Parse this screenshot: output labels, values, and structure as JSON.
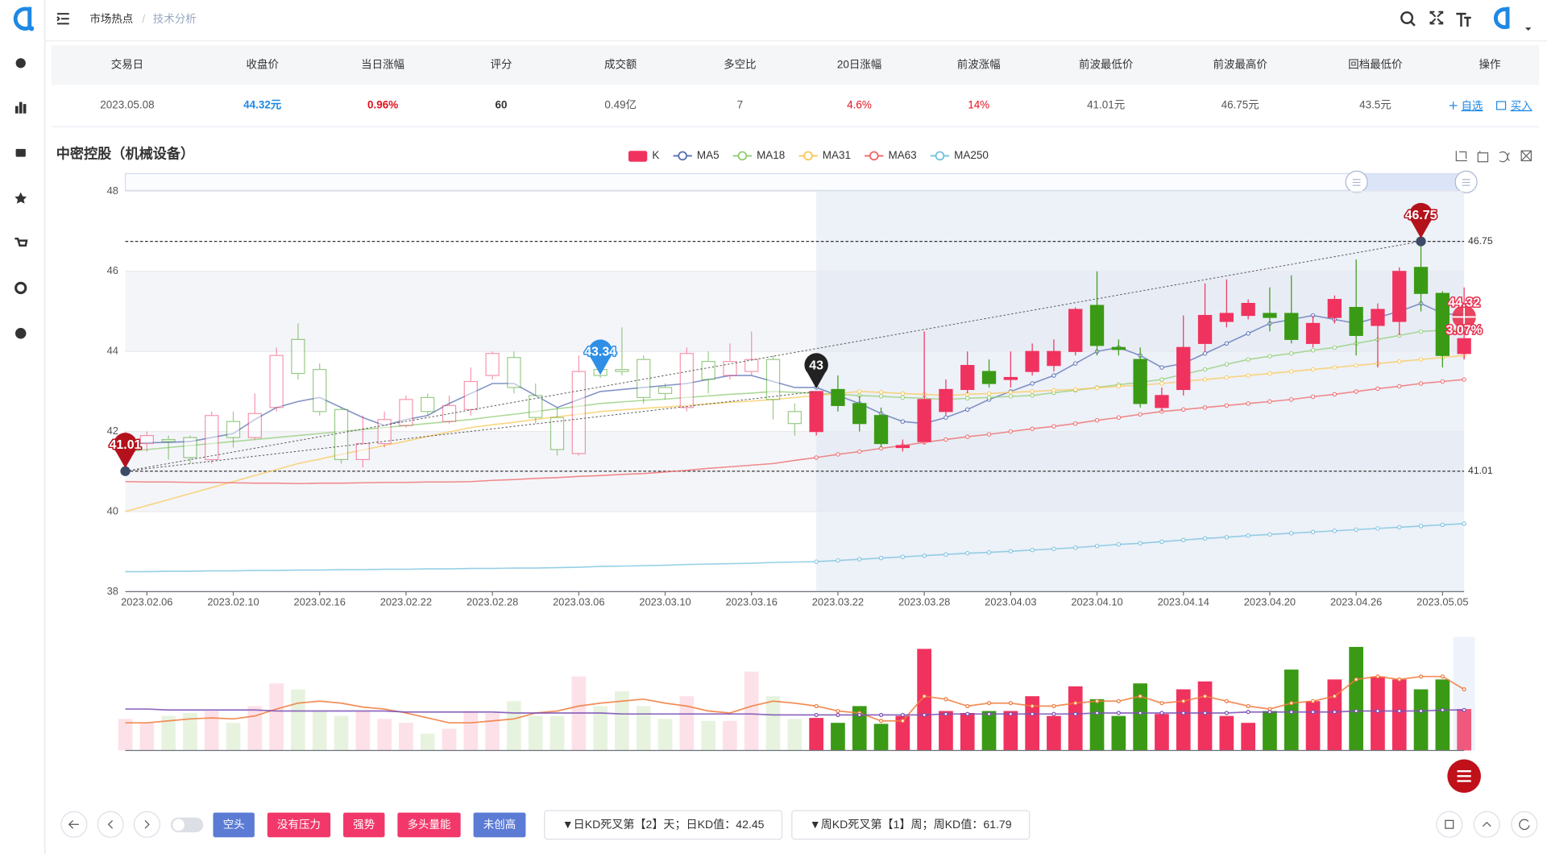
{
  "header": {
    "breadcrumb": [
      "市场热点",
      "技术分析"
    ],
    "breadcrumb_separator": "/"
  },
  "table": {
    "columns": [
      "交易日",
      "收盘价",
      "当日涨幅",
      "评分",
      "成交额",
      "多空比",
      "20日涨幅",
      "前波涨幅",
      "前波最低价",
      "前波最高价",
      "回档最低价",
      "操作"
    ],
    "rows": [
      [
        "2023.05.08",
        "44.32元",
        "0.96%",
        "60",
        "0.49亿",
        "7",
        "4.6%",
        "14%",
        "41.01元",
        "46.75元",
        "43.5元",
        [
          "自选",
          "买入"
        ]
      ]
    ]
  },
  "chart_data": {
    "type": "candlestick",
    "title": "中密控股（机械设备）",
    "candle_name": "K",
    "up_color": "#f0325f",
    "down_color": "#3a9a15",
    "categories": [
      null,
      "2023.02.06",
      null,
      null,
      null,
      "2023.02.10",
      null,
      null,
      null,
      "2023.02.16",
      null,
      null,
      null,
      "2023.02.22",
      null,
      null,
      null,
      "2023.02.28",
      null,
      null,
      null,
      "2023.03.06",
      null,
      null,
      null,
      "2023.03.10",
      null,
      null,
      null,
      "2023.03.16",
      null,
      null,
      null,
      "2023.03.22",
      null,
      null,
      null,
      "2023.03.28",
      null,
      null,
      null,
      "2023.04.03",
      null,
      null,
      null,
      "2023.04.10",
      null,
      null,
      null,
      "2023.04.14",
      null,
      null,
      null,
      "2023.04.20",
      null,
      null,
      null,
      "2023.04.26",
      null,
      null,
      null,
      "2023.05.05",
      null
    ],
    "open": [
      41.6,
      41.7,
      41.8,
      41.85,
      41.3,
      42.25,
      41.85,
      42.6,
      44.3,
      43.55,
      42.55,
      41.3,
      41.7,
      42.15,
      42.85,
      42.25,
      42.55,
      43.4,
      43.85,
      42.9,
      42.35,
      41.45,
      43.55,
      43.55,
      43.8,
      43.1,
      42.6,
      43.75,
      43.4,
      43.5,
      43.8,
      42.5,
      42.0,
      43.05,
      42.7,
      42.4,
      41.6,
      41.75,
      42.5,
      43.05,
      43.5,
      43.3,
      43.5,
      43.65,
      44.0,
      45.15,
      44.1,
      43.8,
      42.6,
      43.05,
      44.2,
      44.75,
      44.9,
      44.95,
      44.95,
      44.2,
      44.85,
      45.1,
      44.65,
      44.75,
      46.1,
      45.45,
      43.95
    ],
    "close": [
      41.8,
      41.9,
      41.75,
      41.35,
      42.4,
      41.85,
      42.45,
      43.9,
      43.45,
      42.5,
      41.3,
      41.7,
      42.3,
      42.8,
      42.5,
      42.65,
      43.25,
      43.95,
      43.1,
      42.35,
      41.55,
      43.5,
      43.4,
      43.5,
      42.85,
      42.95,
      43.95,
      43.3,
      43.75,
      43.8,
      42.8,
      42.2,
      43.0,
      42.65,
      42.2,
      41.7,
      41.65,
      42.8,
      43.05,
      43.65,
      43.2,
      43.35,
      44.0,
      44.0,
      45.05,
      44.15,
      44.05,
      42.7,
      42.9,
      44.1,
      44.9,
      44.95,
      45.2,
      44.85,
      44.3,
      44.7,
      45.3,
      44.4,
      45.05,
      46.0,
      45.45,
      43.9,
      44.32
    ],
    "high": [
      42.0,
      42.0,
      41.9,
      41.9,
      42.5,
      42.5,
      42.95,
      44.1,
      44.7,
      43.7,
      42.6,
      42.4,
      42.5,
      42.9,
      42.95,
      42.9,
      43.6,
      44.0,
      44.0,
      43.2,
      42.6,
      43.9,
      43.8,
      44.6,
      43.9,
      43.2,
      44.1,
      44.0,
      44.2,
      44.5,
      43.9,
      42.7,
      43.0,
      43.4,
      42.9,
      42.6,
      41.8,
      44.5,
      43.3,
      44.0,
      43.8,
      44.0,
      44.2,
      44.3,
      45.1,
      46.0,
      44.3,
      44.1,
      43.1,
      44.9,
      45.7,
      45.8,
      45.3,
      45.6,
      45.9,
      44.9,
      45.4,
      46.3,
      45.2,
      46.1,
      46.75,
      45.5,
      45.6
    ],
    "low": [
      41.01,
      41.5,
      41.3,
      41.2,
      41.2,
      41.6,
      41.8,
      42.5,
      43.3,
      42.4,
      41.2,
      41.1,
      41.6,
      42.1,
      42.4,
      42.2,
      42.4,
      43.3,
      42.95,
      42.2,
      41.4,
      41.4,
      43.34,
      43.4,
      42.7,
      42.8,
      42.5,
      42.95,
      43.3,
      43.4,
      42.3,
      41.9,
      41.9,
      42.5,
      42.0,
      41.6,
      41.5,
      41.7,
      42.4,
      42.95,
      43.1,
      43.1,
      43.4,
      43.5,
      43.9,
      43.9,
      43.9,
      42.6,
      42.5,
      42.9,
      44.0,
      44.6,
      44.8,
      44.5,
      44.2,
      44.1,
      44.7,
      43.9,
      43.6,
      44.4,
      45.0,
      43.6,
      43.8
    ],
    "series": [
      {
        "name": "MA5",
        "color": "#5a6fb3",
        "values": [
          41.7,
          41.72,
          41.73,
          41.75,
          41.85,
          41.95,
          42.3,
          42.6,
          42.75,
          42.85,
          42.6,
          42.35,
          42.15,
          42.3,
          42.4,
          42.7,
          42.95,
          43.2,
          43.2,
          42.9,
          42.6,
          42.8,
          43.0,
          43.05,
          43.1,
          43.15,
          43.2,
          43.3,
          43.4,
          43.4,
          43.25,
          43.1,
          43.1,
          42.9,
          42.7,
          42.45,
          42.25,
          42.2,
          42.35,
          42.55,
          42.8,
          43.0,
          43.2,
          43.4,
          43.7,
          44.0,
          44.1,
          43.9,
          43.6,
          43.7,
          43.95,
          44.2,
          44.45,
          44.7,
          44.8,
          44.9,
          44.8,
          44.7,
          44.85,
          45.0,
          45.2,
          44.95,
          44.9
        ]
      },
      {
        "name": "MA18",
        "color": "#91cc75",
        "values": [
          41.5,
          41.55,
          41.6,
          41.65,
          41.7,
          41.75,
          41.8,
          41.85,
          41.9,
          41.95,
          42.0,
          42.05,
          42.1,
          42.15,
          42.2,
          42.25,
          42.3,
          42.37,
          42.43,
          42.5,
          42.57,
          42.63,
          42.7,
          42.74,
          42.78,
          42.81,
          42.85,
          42.89,
          42.93,
          42.96,
          43.0,
          42.98,
          42.95,
          42.93,
          42.9,
          42.88,
          42.85,
          42.83,
          42.8,
          42.83,
          42.85,
          42.88,
          42.9,
          42.97,
          43.03,
          43.1,
          43.17,
          43.23,
          43.3,
          43.43,
          43.55,
          43.68,
          43.8,
          43.88,
          43.95,
          44.03,
          44.1,
          44.2,
          44.3,
          44.4,
          44.5,
          44.53,
          44.55
        ]
      },
      {
        "name": "MA31",
        "color": "#fac858",
        "values": [
          40.0,
          40.15,
          40.3,
          40.45,
          40.6,
          40.75,
          40.9,
          41.05,
          41.2,
          41.31,
          41.43,
          41.54,
          41.65,
          41.76,
          41.88,
          41.99,
          42.1,
          42.17,
          42.23,
          42.3,
          42.37,
          42.43,
          42.5,
          42.54,
          42.58,
          42.61,
          42.65,
          42.69,
          42.73,
          42.76,
          42.8,
          42.85,
          42.9,
          42.95,
          43.0,
          42.98,
          42.95,
          42.93,
          42.9,
          42.93,
          42.95,
          42.98,
          43.0,
          43.03,
          43.05,
          43.09,
          43.13,
          43.16,
          43.2,
          43.25,
          43.3,
          43.35,
          43.4,
          43.45,
          43.5,
          43.55,
          43.6,
          43.65,
          43.7,
          43.75,
          43.8,
          43.85,
          43.9
        ]
      },
      {
        "name": "MA63",
        "color": "#ee6666",
        "values": [
          40.75,
          40.74,
          40.74,
          40.73,
          40.73,
          40.72,
          40.71,
          40.71,
          40.7,
          40.71,
          40.71,
          40.72,
          40.73,
          40.73,
          40.74,
          40.74,
          40.75,
          40.78,
          40.8,
          40.83,
          40.85,
          40.88,
          40.9,
          40.93,
          40.95,
          40.99,
          41.03,
          41.08,
          41.12,
          41.16,
          41.2,
          41.28,
          41.35,
          41.43,
          41.5,
          41.58,
          41.65,
          41.73,
          41.8,
          41.87,
          41.93,
          42.0,
          42.07,
          42.13,
          42.2,
          42.28,
          42.35,
          42.43,
          42.5,
          42.55,
          42.6,
          42.65,
          42.7,
          42.75,
          42.8,
          42.87,
          42.93,
          43.0,
          43.07,
          43.13,
          43.2,
          43.25,
          43.3
        ]
      },
      {
        "name": "MA250",
        "color": "#73c0de",
        "values": [
          38.5,
          38.5,
          38.51,
          38.51,
          38.52,
          38.52,
          38.53,
          38.53,
          38.54,
          38.54,
          38.55,
          38.55,
          38.56,
          38.56,
          38.57,
          38.57,
          38.58,
          38.58,
          38.59,
          38.59,
          38.6,
          38.61,
          38.63,
          38.64,
          38.65,
          38.66,
          38.68,
          38.69,
          38.7,
          38.71,
          38.73,
          38.74,
          38.75,
          38.78,
          38.81,
          38.84,
          38.87,
          38.9,
          38.93,
          38.96,
          38.98,
          39.01,
          39.04,
          39.07,
          39.1,
          39.14,
          39.18,
          39.21,
          39.25,
          39.29,
          39.33,
          39.36,
          39.4,
          39.43,
          39.46,
          39.49,
          39.52,
          39.55,
          39.58,
          39.61,
          39.64,
          39.67,
          39.7
        ]
      }
    ],
    "ylim": [
      38,
      48
    ],
    "yticks": [
      38,
      40,
      42,
      44,
      46,
      48
    ],
    "grid": true,
    "reference_lines": [
      46.75,
      41.01
    ],
    "markers": [
      {
        "value": 41.01,
        "color": "#b3121d"
      },
      {
        "value": 43.34,
        "color": "#2f8fe6"
      },
      {
        "value": 43,
        "color": "#222222"
      },
      {
        "value": 46.75,
        "color": "#b3121d"
      },
      {
        "value": 44.32,
        "color": "#e8304f",
        "change": {
          "value": 3.07,
          "label": "3.07%"
        }
      }
    ],
    "volume": {
      "values": [
        32,
        28,
        35,
        38,
        40,
        28,
        45,
        68,
        62,
        40,
        35,
        40,
        32,
        28,
        17,
        22,
        40,
        38,
        50,
        35,
        35,
        75,
        45,
        60,
        45,
        32,
        55,
        30,
        30,
        80,
        55,
        32,
        33,
        28,
        45,
        27,
        35,
        103,
        40,
        38,
        40,
        40,
        55,
        35,
        65,
        52,
        35,
        68,
        37,
        62,
        70,
        35,
        28,
        40,
        82,
        50,
        72,
        105,
        75,
        72,
        62,
        72,
        42
      ],
      "lines": [
        {
          "color": "#f07a3a",
          "values": [
            28,
            28,
            30,
            32,
            33,
            32,
            35,
            42,
            48,
            50,
            48,
            44,
            42,
            38,
            33,
            28,
            28,
            30,
            32,
            38,
            40,
            45,
            48,
            50,
            52,
            48,
            45,
            40,
            38,
            45,
            50,
            48,
            45,
            40,
            38,
            30,
            30,
            55,
            52,
            45,
            48,
            48,
            45,
            45,
            48,
            50,
            50,
            55,
            48,
            50,
            55,
            50,
            45,
            42,
            48,
            50,
            55,
            72,
            75,
            72,
            75,
            75,
            62
          ]
        },
        {
          "color": "#7a4fb5",
          "values": [
            42,
            42,
            41,
            41,
            41,
            41,
            41,
            40,
            40,
            40,
            40,
            40,
            40,
            39,
            39,
            39,
            39,
            39,
            38,
            38,
            38,
            38,
            38,
            37,
            37,
            37,
            37,
            37,
            37,
            37,
            36,
            36,
            36,
            36,
            36,
            36,
            36,
            36,
            37,
            37,
            37,
            37,
            37,
            37,
            37,
            38,
            38,
            38,
            38,
            38,
            38,
            38,
            39,
            39,
            39,
            39,
            39,
            40,
            40,
            40,
            40,
            41,
            41
          ]
        }
      ]
    }
  },
  "toolbar": {
    "tags": [
      {
        "label": "空头",
        "color": "#5b7bd5"
      },
      {
        "label": "没有压力",
        "color": "#f2386a"
      },
      {
        "label": "强势",
        "color": "#f2386a"
      },
      {
        "label": "多头量能",
        "color": "#f2386a"
      },
      {
        "label": "未创高",
        "color": "#5b7bd5"
      }
    ],
    "info": [
      "▼日KD死叉第【2】天；日KD值：42.45",
      "▼周KD死叉第【1】周；周KD值：61.79"
    ]
  }
}
